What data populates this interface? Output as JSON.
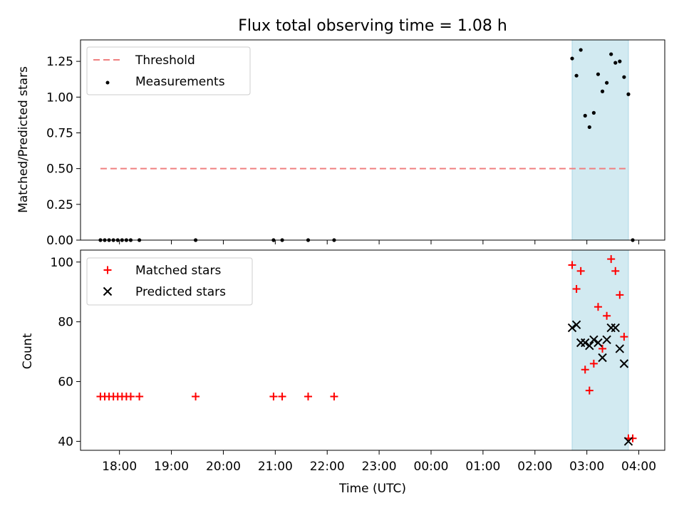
{
  "title": "Flux total observing time = 1.08 h",
  "x_label": "Time (UTC)",
  "x_ticks": [
    "18:00",
    "19:00",
    "20:00",
    "21:00",
    "22:00",
    "23:00",
    "00:00",
    "01:00",
    "02:00",
    "03:00",
    "04:00"
  ],
  "colors": {
    "threshold": "#f08080",
    "shade": "#add8e6",
    "matched": "#ff0000",
    "predicted": "#000000",
    "measure": "#000000"
  },
  "chart_data": [
    {
      "type": "scatter",
      "ylabel": "Matched/Predicted stars",
      "ylim": [
        0,
        1.4
      ],
      "yticks": [
        0,
        0.25,
        0.5,
        0.75,
        1.0,
        1.25
      ],
      "ytick_labels": [
        "0.00",
        "0.25",
        "0.50",
        "0.75",
        "1.00",
        "1.25"
      ],
      "legend": {
        "placement": "top-left",
        "entries": [
          "Threshold",
          "Measurements"
        ]
      },
      "shaded_span": [
        "02:43",
        "03:48"
      ],
      "threshold": {
        "y": 0.5,
        "x_range": [
          "17:38",
          "03:48"
        ]
      },
      "measurements": {
        "x": [
          "17:38",
          "17:43",
          "17:48",
          "17:53",
          "17:58",
          "18:03",
          "18:08",
          "18:13",
          "18:23",
          "19:28",
          "20:58",
          "21:08",
          "21:38",
          "22:08",
          "02:43",
          "02:48",
          "02:53",
          "02:58",
          "03:03",
          "03:08",
          "03:13",
          "03:18",
          "03:23",
          "03:28",
          "03:33",
          "03:38",
          "03:43",
          "03:48",
          "03:53"
        ],
        "y": [
          0,
          0,
          0,
          0,
          0,
          0,
          0,
          0,
          0,
          0,
          0,
          0,
          0,
          0,
          1.27,
          1.15,
          1.33,
          0.87,
          0.79,
          0.89,
          1.16,
          1.04,
          1.1,
          1.3,
          1.24,
          1.25,
          1.14,
          1.02,
          0
        ]
      }
    },
    {
      "type": "scatter",
      "ylabel": "Count",
      "ylim": [
        37,
        104
      ],
      "yticks": [
        40,
        60,
        80,
        100
      ],
      "ytick_labels": [
        "40",
        "60",
        "80",
        "100"
      ],
      "legend": {
        "placement": "top-left",
        "entries": [
          "Matched stars",
          "Predicted stars"
        ]
      },
      "shaded_span": [
        "02:43",
        "03:48"
      ],
      "series": [
        {
          "name": "Matched stars",
          "marker": "+",
          "x": [
            "17:38",
            "17:43",
            "17:48",
            "17:53",
            "17:58",
            "18:03",
            "18:08",
            "18:13",
            "18:23",
            "19:28",
            "20:58",
            "21:08",
            "21:38",
            "22:08",
            "02:43",
            "02:48",
            "02:53",
            "02:58",
            "03:03",
            "03:08",
            "03:13",
            "03:18",
            "03:23",
            "03:28",
            "03:33",
            "03:38",
            "03:43",
            "03:48",
            "03:53"
          ],
          "y": [
            55,
            55,
            55,
            55,
            55,
            55,
            55,
            55,
            55,
            55,
            55,
            55,
            55,
            55,
            99,
            91,
            97,
            64,
            57,
            66,
            85,
            71,
            82,
            101,
            97,
            89,
            75,
            41,
            41
          ]
        },
        {
          "name": "Predicted stars",
          "marker": "x",
          "x": [
            "02:43",
            "02:48",
            "02:53",
            "02:58",
            "03:03",
            "03:08",
            "03:13",
            "03:18",
            "03:23",
            "03:28",
            "03:33",
            "03:38",
            "03:43",
            "03:48"
          ],
          "y": [
            78,
            79,
            73,
            73,
            72,
            74,
            73,
            68,
            74,
            78,
            78,
            71,
            66,
            40
          ]
        }
      ]
    }
  ]
}
